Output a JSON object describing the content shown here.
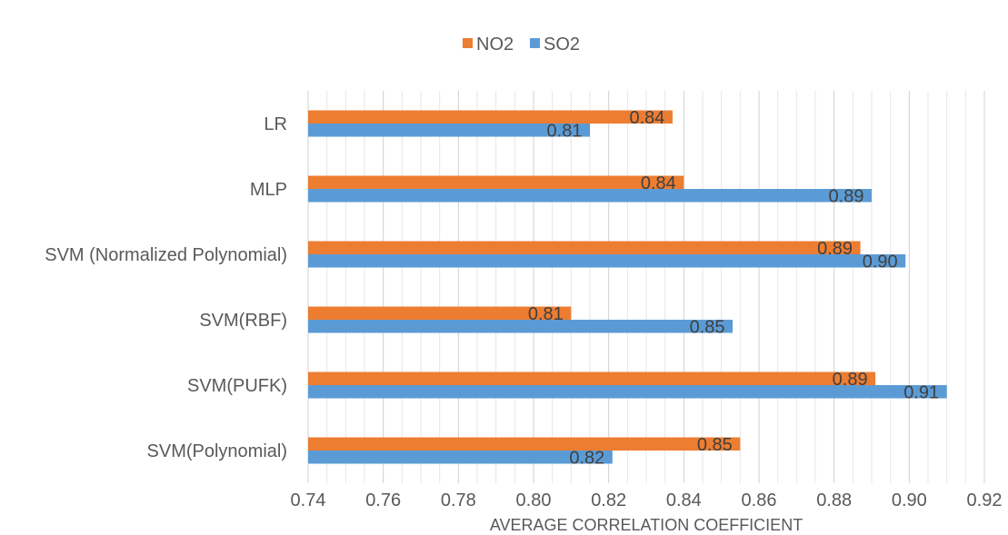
{
  "chart_data": {
    "type": "bar",
    "orientation": "horizontal",
    "categories": [
      "LR",
      "MLP",
      "SVM (Normalized Polynomial)",
      "SVM(RBF)",
      "SVM(PUFK)",
      "SVM(Polynomial)"
    ],
    "series": [
      {
        "name": "NO2",
        "color": "#ED7D31",
        "values": [
          0.837,
          0.84,
          0.887,
          0.81,
          0.891,
          0.855
        ],
        "labels": [
          "0.84",
          "0.84",
          "0.89",
          "0.81",
          "0.89",
          "0.85"
        ]
      },
      {
        "name": "SO2",
        "color": "#5B9BD5",
        "values": [
          0.815,
          0.89,
          0.899,
          0.853,
          0.91,
          0.821
        ],
        "labels": [
          "0.81",
          "0.89",
          "0.90",
          "0.85",
          "0.91",
          "0.82"
        ]
      }
    ],
    "xlim": [
      0.74,
      0.92
    ],
    "xticks": [
      "0.74",
      "0.76",
      "0.78",
      "0.80",
      "0.82",
      "0.84",
      "0.86",
      "0.88",
      "0.90",
      "0.92"
    ],
    "xlabel": "AVERAGE CORRELATION COEFFICIENT",
    "ylabel": "",
    "title": "",
    "grid": true,
    "legend_position": "top"
  }
}
